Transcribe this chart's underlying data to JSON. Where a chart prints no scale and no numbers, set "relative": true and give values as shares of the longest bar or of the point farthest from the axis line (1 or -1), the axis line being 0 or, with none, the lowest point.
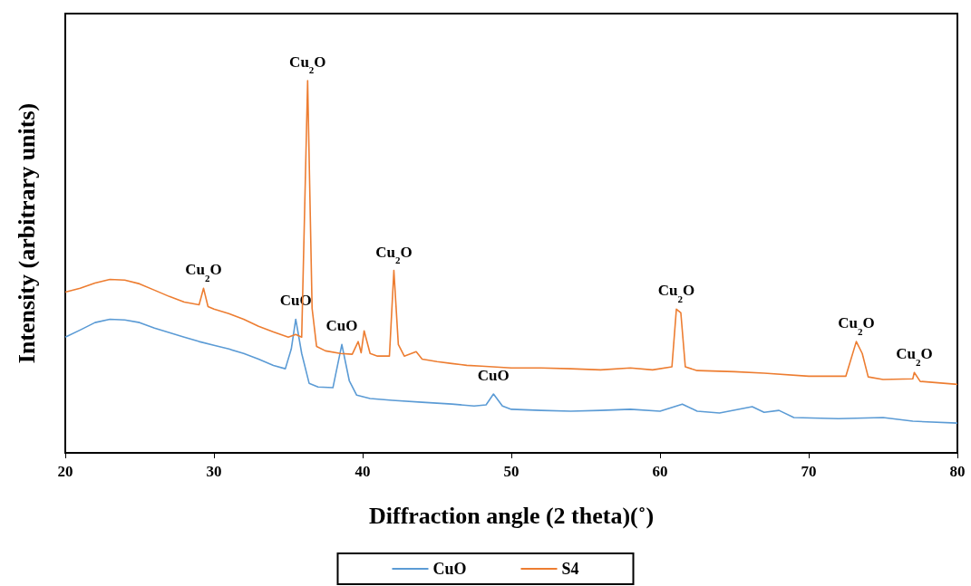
{
  "chart_data": {
    "type": "line",
    "relative": true,
    "xlabel": "Diffraction angle (2 theta)(˚)",
    "ylabel": "Intensity (arbitrary units)",
    "xlim": [
      20,
      80
    ],
    "xticks": [
      20,
      30,
      40,
      50,
      60,
      70,
      80
    ],
    "grid": false,
    "legend": "bottom",
    "marker": "none",
    "line_style": "solid",
    "series": [
      {
        "name": "CuO",
        "color": "#5b9bd5",
        "x": [
          20,
          21,
          22,
          23,
          24,
          25,
          26,
          27,
          28,
          29,
          30,
          31,
          32,
          33,
          34,
          34.8,
          35.2,
          35.5,
          35.9,
          36.4,
          37,
          38,
          38.6,
          39.1,
          39.6,
          40.5,
          42,
          44,
          46,
          47.5,
          48.3,
          48.8,
          49.4,
          50,
          52,
          54,
          56,
          58,
          60,
          61.5,
          62.5,
          64,
          66.2,
          67,
          68,
          69,
          72,
          75,
          77,
          80
        ],
        "values": [
          0.311,
          0.33,
          0.35,
          0.359,
          0.357,
          0.35,
          0.335,
          0.323,
          0.311,
          0.299,
          0.289,
          0.279,
          0.267,
          0.252,
          0.235,
          0.226,
          0.279,
          0.359,
          0.267,
          0.187,
          0.177,
          0.175,
          0.291,
          0.194,
          0.155,
          0.146,
          0.141,
          0.136,
          0.131,
          0.126,
          0.129,
          0.158,
          0.126,
          0.117,
          0.114,
          0.112,
          0.114,
          0.117,
          0.112,
          0.131,
          0.112,
          0.107,
          0.124,
          0.109,
          0.114,
          0.095,
          0.092,
          0.095,
          0.085,
          0.08
        ]
      },
      {
        "name": "S4",
        "color": "#ed7d31",
        "x": [
          20,
          21,
          22,
          23,
          24,
          25,
          26,
          27,
          28,
          29,
          29.3,
          29.6,
          30,
          31,
          32,
          33,
          34,
          35,
          35.5,
          35.9,
          36.3,
          36.6,
          36.9,
          37.5,
          38.5,
          39.3,
          39.7,
          39.9,
          40.1,
          40.5,
          41,
          41.8,
          42.1,
          42.4,
          42.8,
          43.6,
          44,
          45,
          46,
          47,
          48,
          50,
          52,
          54,
          56,
          58,
          59.5,
          60.8,
          61.1,
          61.4,
          61.7,
          62.5,
          65,
          67,
          70,
          72.5,
          73.2,
          73.6,
          74,
          75,
          77,
          77.1,
          77.5,
          80
        ],
        "values": [
          0.432,
          0.442,
          0.456,
          0.466,
          0.464,
          0.454,
          0.437,
          0.42,
          0.405,
          0.398,
          0.442,
          0.393,
          0.386,
          0.374,
          0.359,
          0.34,
          0.325,
          0.311,
          0.318,
          0.311,
          1,
          0.388,
          0.286,
          0.274,
          0.267,
          0.265,
          0.299,
          0.269,
          0.328,
          0.267,
          0.26,
          0.26,
          0.49,
          0.291,
          0.26,
          0.272,
          0.252,
          0.245,
          0.24,
          0.235,
          0.233,
          0.228,
          0.228,
          0.226,
          0.223,
          0.228,
          0.223,
          0.231,
          0.386,
          0.376,
          0.231,
          0.221,
          0.218,
          0.214,
          0.206,
          0.206,
          0.299,
          0.267,
          0.204,
          0.197,
          0.199,
          0.216,
          0.192,
          0.184
        ]
      }
    ],
    "annotations": [
      {
        "text": "Cu$_{2}$O",
        "x": 29.3,
        "y": 0.442
      },
      {
        "text": "CuO",
        "x": 35.5,
        "y": 0.359
      },
      {
        "text": "Cu$_{2}$O",
        "x": 36.3,
        "y": 1
      },
      {
        "text": "CuO",
        "x": 38.6,
        "y": 0.291
      },
      {
        "text": "Cu$_{2}$O",
        "x": 42.1,
        "y": 0.49
      },
      {
        "text": "CuO",
        "x": 48.8,
        "y": 0.158
      },
      {
        "text": "Cu$_{2}$O",
        "x": 61.1,
        "y": 0.386
      },
      {
        "text": "Cu$_{2}$O",
        "x": 73.2,
        "y": 0.299
      },
      {
        "text": "Cu$_{2}$O",
        "x": 77.1,
        "y": 0.216
      }
    ]
  }
}
